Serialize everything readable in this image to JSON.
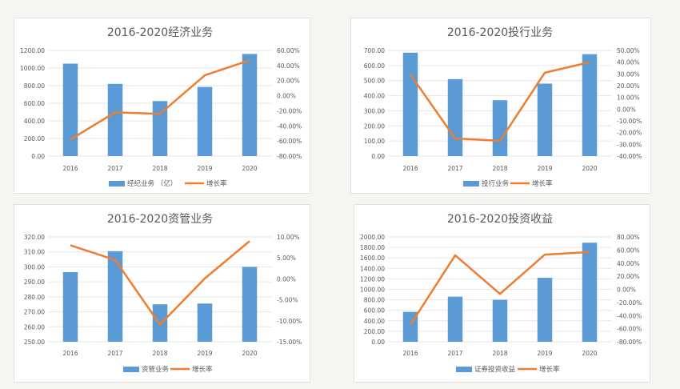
{
  "colors": {
    "bar": "#5b9bd5",
    "line": "#ed7d31",
    "grid": "#e6e6e6",
    "text": "#595959"
  },
  "chart_data": [
    {
      "type": "bar+line",
      "title": "2016-2020经济业务",
      "categories": [
        "2016",
        "2017",
        "2018",
        "2019",
        "2020"
      ],
      "series": [
        {
          "name": "经纪业务 （亿）",
          "type": "bar",
          "axis": "left",
          "values": [
            1050,
            820,
            625,
            785,
            1160
          ]
        },
        {
          "name": "增长率",
          "type": "line",
          "axis": "right",
          "values": [
            -58,
            -22,
            -24,
            27,
            47
          ]
        }
      ],
      "left_ticks": [
        "0.00",
        "200.00",
        "400.00",
        "600.00",
        "800.00",
        "1000.00",
        "1200.00"
      ],
      "ylim": [
        0,
        1200
      ],
      "right_ticks": [
        "-80.00%",
        "-60.00%",
        "-40.00%",
        "-20.00%",
        "0.00%",
        "20.00%",
        "40.00%",
        "60.00%"
      ],
      "y2lim": [
        -80,
        60
      ],
      "legend": "bottom"
    },
    {
      "type": "bar+line",
      "title": "2016-2020投行业务",
      "categories": [
        "2016",
        "2017",
        "2018",
        "2019",
        "2020"
      ],
      "series": [
        {
          "name": "投行业务",
          "type": "bar",
          "axis": "left",
          "values": [
            685,
            510,
            370,
            480,
            675
          ]
        },
        {
          "name": "增长率",
          "type": "line",
          "axis": "right",
          "values": [
            29.5,
            -25,
            -27,
            31,
            40
          ]
        }
      ],
      "left_ticks": [
        "0.00",
        "100.00",
        "200.00",
        "300.00",
        "400.00",
        "500.00",
        "600.00",
        "700.00"
      ],
      "ylim": [
        0,
        700
      ],
      "right_ticks": [
        "-40.00%",
        "-30.00%",
        "-20.00%",
        "-10.00%",
        "0.00%",
        "10.00%",
        "20.00%",
        "30.00%",
        "40.00%",
        "50.00%"
      ],
      "y2lim": [
        -40,
        50
      ],
      "legend": "bottom"
    },
    {
      "type": "bar+line",
      "title": "2016-2020资管业务",
      "categories": [
        "2016",
        "2017",
        "2018",
        "2019",
        "2020"
      ],
      "series": [
        {
          "name": "资管业务",
          "type": "bar",
          "axis": "left",
          "values": [
            296.5,
            310.5,
            275,
            275.5,
            300
          ]
        },
        {
          "name": "增长率",
          "type": "line",
          "axis": "right",
          "values": [
            8,
            4.5,
            -10.9,
            0.1,
            9
          ]
        }
      ],
      "left_ticks": [
        "250.00",
        "260.00",
        "270.00",
        "280.00",
        "290.00",
        "300.00",
        "310.00",
        "320.00"
      ],
      "ylim": [
        250,
        320
      ],
      "right_ticks": [
        "-15.00%",
        "-10.00%",
        "-5.00%",
        "0.00%",
        "5.00%",
        "10.00%"
      ],
      "y2lim": [
        -15,
        10
      ],
      "legend": "bottom"
    },
    {
      "type": "bar+line",
      "title": "2016-2020投资收益",
      "categories": [
        "2016",
        "2017",
        "2018",
        "2019",
        "2020"
      ],
      "series": [
        {
          "name": "证券投资收益",
          "type": "bar",
          "axis": "left",
          "values": [
            570,
            860,
            800,
            1220,
            1890
          ]
        },
        {
          "name": "增长率",
          "type": "line",
          "axis": "right",
          "values": [
            -54,
            52,
            -7,
            53,
            57
          ]
        }
      ],
      "left_ticks": [
        "0.00",
        "200.00",
        "400.00",
        "600.00",
        "800.00",
        "1000.00",
        "1200.00",
        "1400.00",
        "1600.00",
        "1800.00",
        "2000.00"
      ],
      "ylim": [
        0,
        2000
      ],
      "right_ticks": [
        "-80.00%",
        "-60.00%",
        "-40.00%",
        "-20.00%",
        "0.00%",
        "20.00%",
        "40.00%",
        "60.00%",
        "80.00%"
      ],
      "y2lim": [
        -80,
        80
      ],
      "legend": "bottom"
    }
  ]
}
